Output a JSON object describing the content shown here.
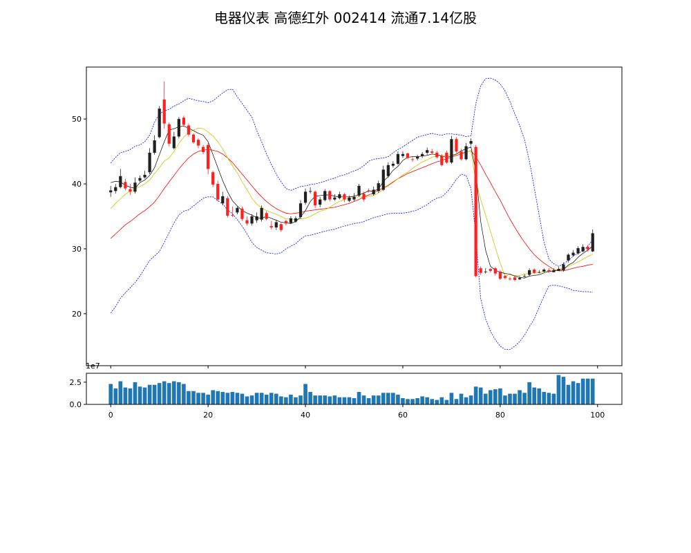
{
  "chart_data": [
    {
      "type": "candlestick",
      "title": "电器仪表 高德红外 002414 流通7.14亿股",
      "x": [
        0,
        1,
        2,
        3,
        4,
        5,
        6,
        7,
        8,
        9,
        10,
        11,
        12,
        13,
        14,
        15,
        16,
        17,
        18,
        19,
        20,
        21,
        22,
        23,
        24,
        25,
        26,
        27,
        28,
        29,
        30,
        31,
        32,
        33,
        34,
        35,
        36,
        37,
        38,
        39,
        40,
        41,
        42,
        43,
        44,
        45,
        46,
        47,
        48,
        49,
        50,
        51,
        52,
        53,
        54,
        55,
        56,
        57,
        58,
        59,
        60,
        61,
        62,
        63,
        64,
        65,
        66,
        67,
        68,
        69,
        70,
        71,
        72,
        73,
        74,
        75,
        76,
        77,
        78,
        79,
        80,
        81,
        82,
        83,
        84,
        85,
        86,
        87,
        88,
        89,
        90,
        91,
        92,
        93,
        94,
        95,
        96,
        97,
        98,
        99
      ],
      "open": [
        38.7,
        38.9,
        39.5,
        40.3,
        39.2,
        38.8,
        40.5,
        41.0,
        41.8,
        44.8,
        47.2,
        53.0,
        49.2,
        45.5,
        47.3,
        50.2,
        49.0,
        47.6,
        46.8,
        45.7,
        46.0,
        41.8,
        40.0,
        37.0,
        37.8,
        35.2,
        35.6,
        36.2,
        34.4,
        33.9,
        34.4,
        34.5,
        35.5,
        33.5,
        33.3,
        33.8,
        34.3,
        34.0,
        34.2,
        34.9,
        37.1,
        38.8,
        38.8,
        36.8,
        37.5,
        38.9,
        37.6,
        37.8,
        38.4,
        37.4,
        37.6,
        38.2,
        38.5,
        39.0,
        38.4,
        38.9,
        39.1,
        41.2,
        42.8,
        43.1,
        44.3,
        44.7,
        43.8,
        43.9,
        44.3,
        44.8,
        45.0,
        44.8,
        44.3,
        44.8,
        43.3,
        46.9,
        45.0,
        43.8,
        46.2,
        45.7,
        27.0,
        26.4,
        26.9,
        27.0,
        26.5,
        25.8,
        25.4,
        25.6,
        25.3,
        25.7,
        26.0,
        26.8,
        26.4,
        26.5,
        26.7,
        26.4,
        26.6,
        26.7,
        28.2,
        29.0,
        29.3,
        29.6,
        30.3,
        29.6
      ],
      "close": [
        39.0,
        39.5,
        41.2,
        39.3,
        38.8,
        40.2,
        40.9,
        41.4,
        44.8,
        46.7,
        51.6,
        49.3,
        46.2,
        47.3,
        50.0,
        49.1,
        47.6,
        46.4,
        45.9,
        44.9,
        42.3,
        39.9,
        37.6,
        38.1,
        35.1,
        35.1,
        36.3,
        34.6,
        33.9,
        35.0,
        35.0,
        36.3,
        34.6,
        33.3,
        34.1,
        32.9,
        33.9,
        34.7,
        34.7,
        37.0,
        38.8,
        38.9,
        36.7,
        37.6,
        38.9,
        37.6,
        37.9,
        38.4,
        37.6,
        37.9,
        38.0,
        39.7,
        37.6,
        38.9,
        39.1,
        40.1,
        42.2,
        42.9,
        43.1,
        44.6,
        44.6,
        44.0,
        43.7,
        44.2,
        44.6,
        45.2,
        44.8,
        44.1,
        42.9,
        43.3,
        46.9,
        45.0,
        43.8,
        45.8,
        46.6,
        25.8,
        26.3,
        26.5,
        26.6,
        26.2,
        25.4,
        25.5,
        25.3,
        25.2,
        25.5,
        25.8,
        26.7,
        26.3,
        26.4,
        26.8,
        26.5,
        26.7,
        26.9,
        27.6,
        29.1,
        29.4,
        30.1,
        30.3,
        29.9,
        32.4
      ],
      "high": [
        39.7,
        40.0,
        42.3,
        40.8,
        40.0,
        41.0,
        41.3,
        42.0,
        45.5,
        47.5,
        52.0,
        55.8,
        49.5,
        48.0,
        50.3,
        50.5,
        49.3,
        47.8,
        47.0,
        46.0,
        46.3,
        42.0,
        40.5,
        38.8,
        38.1,
        36.5,
        36.5,
        36.5,
        35.0,
        35.3,
        35.6,
        36.7,
        35.8,
        34.3,
        34.5,
        34.0,
        34.5,
        35.0,
        35.0,
        37.5,
        39.3,
        39.5,
        39.0,
        38.0,
        39.2,
        39.0,
        38.4,
        38.8,
        38.6,
        38.2,
        38.6,
        40.0,
        38.8,
        39.3,
        39.6,
        40.5,
        42.8,
        43.3,
        43.5,
        45.0,
        45.0,
        44.8,
        44.1,
        44.5,
        44.9,
        45.6,
        45.4,
        45.1,
        44.6,
        45.1,
        47.4,
        47.2,
        45.4,
        46.3,
        47.0,
        46.0,
        27.3,
        27.0,
        27.0,
        27.2,
        26.7,
        26.0,
        25.7,
        25.8,
        25.8,
        26.1,
        27.0,
        27.0,
        26.7,
        27.0,
        27.0,
        27.0,
        27.2,
        27.9,
        29.3,
        29.8,
        30.4,
        30.7,
        30.6,
        33.0
      ],
      "low": [
        38.0,
        38.5,
        39.3,
        39.0,
        38.3,
        38.5,
        40.3,
        40.8,
        41.5,
        44.5,
        47.0,
        48.5,
        45.8,
        45.3,
        47.0,
        48.8,
        47.3,
        46.2,
        45.5,
        44.6,
        41.5,
        39.5,
        37.3,
        36.7,
        34.8,
        34.9,
        35.3,
        34.3,
        33.6,
        33.6,
        34.0,
        34.2,
        34.4,
        33.0,
        32.9,
        32.6,
        33.6,
        33.8,
        34.0,
        34.6,
        36.8,
        38.5,
        36.3,
        36.4,
        37.3,
        37.3,
        37.4,
        37.6,
        37.2,
        37.2,
        37.3,
        38.0,
        37.3,
        38.7,
        38.2,
        38.6,
        38.9,
        41.0,
        42.5,
        42.9,
        44.0,
        43.8,
        43.4,
        43.6,
        44.0,
        44.5,
        44.5,
        43.9,
        42.7,
        43.1,
        43.1,
        44.8,
        43.6,
        43.6,
        45.9,
        25.6,
        26.0,
        26.2,
        26.4,
        25.9,
        25.2,
        25.3,
        25.1,
        25.0,
        25.2,
        25.6,
        25.8,
        26.1,
        26.2,
        26.4,
        26.3,
        26.4,
        26.6,
        26.5,
        27.9,
        28.8,
        29.1,
        29.5,
        29.6,
        29.5
      ],
      "volume_x10m": [
        2.3,
        1.8,
        2.6,
        1.9,
        1.8,
        2.5,
        2.0,
        1.9,
        2.2,
        2.2,
        2.4,
        2.6,
        2.4,
        2.6,
        2.5,
        2.3,
        1.5,
        1.5,
        1.3,
        1.3,
        1.1,
        1.6,
        1.5,
        1.4,
        1.3,
        1.4,
        1.3,
        1.2,
        0.9,
        1.0,
        1.3,
        1.3,
        1.1,
        1.3,
        1.2,
        0.9,
        0.8,
        1.1,
        0.8,
        1.0,
        2.3,
        1.4,
        1.0,
        1.0,
        1.0,
        0.9,
        1.0,
        0.8,
        0.8,
        0.8,
        0.7,
        1.4,
        1.0,
        0.7,
        1.0,
        1.0,
        1.3,
        1.3,
        1.3,
        1.1,
        0.7,
        0.6,
        0.6,
        0.7,
        0.9,
        0.8,
        0.6,
        0.5,
        0.8,
        0.5,
        1.3,
        0.6,
        1.2,
        0.8,
        1.0,
        2.0,
        1.9,
        1.2,
        1.6,
        1.7,
        1.8,
        1.0,
        1.2,
        1.2,
        1.6,
        1.3,
        2.5,
        1.9,
        1.8,
        1.4,
        1.3,
        1.2,
        3.3,
        3.1,
        2.2,
        2.6,
        2.4,
        2.9,
        2.9,
        2.9
      ],
      "ma_fast": [
        40.2,
        40.4,
        40.3,
        39.8,
        39.5,
        39.3,
        40.2,
        40.6,
        41.3,
        42.5,
        44.5,
        46.5,
        48.3,
        48.5,
        48.8,
        48.9,
        48.6,
        48.2,
        47.8,
        47.5,
        46.5,
        44.5,
        42.5,
        40.5,
        38.8,
        37.4,
        36.6,
        35.9,
        35.5,
        35.2,
        34.8,
        34.7,
        35.0,
        34.7,
        34.4,
        34.1,
        34.0,
        33.9,
        34.2,
        34.9,
        35.9,
        37.3,
        38.1,
        38.2,
        38.3,
        38.3,
        38.1,
        38.0,
        38.0,
        38.0,
        38.1,
        38.3,
        38.6,
        38.9,
        38.9,
        39.2,
        40.4,
        41.1,
        42.1,
        42.7,
        43.6,
        44.1,
        44.2,
        44.2,
        44.3,
        44.4,
        44.6,
        44.5,
        44.3,
        44.1,
        44.3,
        44.6,
        45.1,
        45.4,
        45.7,
        41.9,
        34.2,
        29.8,
        27.3,
        26.7,
        26.4,
        26.2,
        26.1,
        25.8,
        25.6,
        25.5,
        25.8,
        25.9,
        26.0,
        26.3,
        26.5,
        26.6,
        26.7,
        26.8,
        27.5,
        27.9,
        28.7,
        29.3,
        29.8,
        30.4
      ],
      "ma_mid": [
        36.2,
        37.0,
        37.7,
        38.4,
        38.9,
        39.2,
        39.6,
        40.0,
        40.6,
        41.6,
        42.5,
        43.5,
        44.0,
        45.0,
        46.2,
        47.2,
        47.9,
        48.3,
        48.6,
        48.5,
        48.0,
        47.4,
        46.5,
        45.4,
        44.0,
        42.8,
        41.7,
        40.3,
        39.1,
        37.8,
        36.9,
        36.3,
        35.9,
        35.6,
        35.3,
        35.0,
        34.6,
        34.6,
        34.5,
        34.6,
        34.7,
        35.0,
        35.4,
        35.8,
        36.0,
        36.4,
        36.9,
        37.3,
        37.6,
        37.8,
        37.9,
        38.0,
        38.0,
        38.1,
        38.2,
        38.6,
        39.2,
        39.7,
        40.2,
        40.8,
        41.4,
        41.8,
        42.4,
        42.9,
        43.4,
        43.7,
        44.1,
        44.3,
        44.4,
        44.4,
        44.5,
        44.6,
        44.8,
        44.9,
        45.1,
        40.3,
        37.6,
        35.2,
        32.7,
        30.2,
        27.8,
        25.8,
        26.0,
        25.9,
        25.9,
        26.1,
        26.2,
        26.3,
        26.4,
        26.5,
        26.6,
        26.6,
        26.9,
        27.0,
        27.3,
        27.6,
        28.0,
        28.4,
        28.8,
        29.2
      ],
      "ma_slow": [
        31.6,
        32.3,
        33.0,
        33.7,
        34.2,
        34.8,
        35.4,
        35.9,
        36.5,
        37.2,
        38.2,
        39.3,
        40.3,
        41.3,
        42.3,
        43.2,
        44.0,
        44.6,
        45.0,
        45.2,
        45.3,
        45.2,
        45.0,
        44.6,
        44.0,
        43.3,
        42.4,
        41.5,
        40.6,
        39.7,
        38.8,
        38.0,
        37.3,
        36.7,
        36.2,
        35.8,
        35.5,
        35.4,
        35.5,
        35.6,
        35.8,
        35.9,
        36.0,
        36.1,
        36.2,
        36.3,
        36.4,
        36.6,
        36.8,
        37.0,
        37.3,
        37.6,
        38.0,
        38.3,
        38.6,
        39.0,
        39.4,
        39.8,
        40.3,
        40.8,
        41.2,
        41.6,
        41.9,
        42.2,
        42.5,
        42.8,
        43.1,
        43.4,
        43.6,
        43.9,
        44.1,
        44.4,
        44.6,
        44.9,
        45.1,
        44.2,
        42.9,
        41.5,
        40.2,
        38.8,
        37.5,
        36.0,
        34.6,
        33.3,
        32.1,
        31.0,
        30.0,
        29.1,
        28.4,
        27.8,
        27.3,
        26.8,
        26.6,
        26.6,
        26.8,
        27.0,
        27.2,
        27.3,
        27.5,
        27.6
      ],
      "boll_upper": [
        43.2,
        44.1,
        44.8,
        45.0,
        45.3,
        45.8,
        46.0,
        46.5,
        47.5,
        49.5,
        50.8,
        51.2,
        51.5,
        52.0,
        52.3,
        52.8,
        53.2,
        53.0,
        52.8,
        52.7,
        52.5,
        52.8,
        53.4,
        54.0,
        54.5,
        54.6,
        53.4,
        52.4,
        51.3,
        50.3,
        48.2,
        46.5,
        44.6,
        43.0,
        41.5,
        40.3,
        39.3,
        39.0,
        39.3,
        39.6,
        39.7,
        39.9,
        40.0,
        40.2,
        40.4,
        40.7,
        40.9,
        41.2,
        41.4,
        41.7,
        42.0,
        42.3,
        42.8,
        43.5,
        43.8,
        43.9,
        44.0,
        44.2,
        44.8,
        45.3,
        45.7,
        46.2,
        46.7,
        47.2,
        47.4,
        47.6,
        47.8,
        47.6,
        47.5,
        47.7,
        47.7,
        47.6,
        47.5,
        47.3,
        47.4,
        52.4,
        55.1,
        56.2,
        56.3,
        56.0,
        55.4,
        54.3,
        52.7,
        50.8,
        49.0,
        46.8,
        43.5,
        39.4,
        35.2,
        31.0,
        28.4,
        27.7,
        27.3,
        27.7,
        28.2,
        28.9,
        29.3,
        29.7,
        30.4,
        31.4
      ],
      "boll_lower": [
        20.1,
        21.1,
        22.4,
        23.2,
        24.0,
        24.8,
        25.8,
        27.0,
        28.2,
        28.9,
        29.6,
        31.0,
        32.5,
        34.0,
        35.2,
        35.8,
        36.0,
        36.6,
        37.2,
        37.8,
        38.0,
        38.0,
        37.4,
        36.9,
        36.0,
        35.4,
        34.5,
        33.5,
        32.3,
        31.0,
        30.2,
        29.8,
        29.4,
        29.3,
        29.2,
        29.4,
        30.0,
        30.4,
        30.8,
        31.5,
        32.0,
        32.1,
        32.3,
        32.5,
        32.7,
        32.9,
        33.0,
        33.3,
        33.5,
        33.7,
        33.9,
        34.0,
        34.2,
        34.5,
        34.8,
        35.0,
        35.2,
        35.4,
        35.5,
        35.5,
        35.5,
        35.6,
        35.8,
        36.0,
        36.4,
        36.8,
        37.4,
        37.8,
        38.0,
        38.7,
        39.6,
        40.7,
        41.5,
        41.3,
        39.3,
        32.0,
        22.3,
        19.2,
        17.3,
        16.0,
        15.0,
        14.5,
        14.5,
        15.0,
        15.7,
        16.7,
        18.0,
        19.2,
        21.0,
        22.7,
        24.3,
        24.4,
        24.3,
        24.1,
        23.9,
        23.6,
        23.5,
        23.4,
        23.4,
        23.3
      ],
      "xlim": [
        -5,
        105
      ],
      "ylim": [
        12,
        58
      ],
      "yticks": [
        20,
        30,
        40,
        50
      ],
      "colors": {
        "up": "#ff2020",
        "down": "#202020",
        "ma_fast": "#000000",
        "ma_mid": "#c8c800",
        "ma_slow": "#ff0000",
        "boll": "#0000ff",
        "volume": "#1f77b4"
      },
      "grid": false
    },
    {
      "type": "bar",
      "xticks": [
        0,
        20,
        40,
        60,
        80,
        100
      ],
      "yticks": [
        0.0,
        2.5
      ],
      "ytick_labels": [
        "0.0",
        "2.5"
      ],
      "offset_text": "1e7",
      "ylim": [
        0,
        3.5
      ]
    }
  ]
}
